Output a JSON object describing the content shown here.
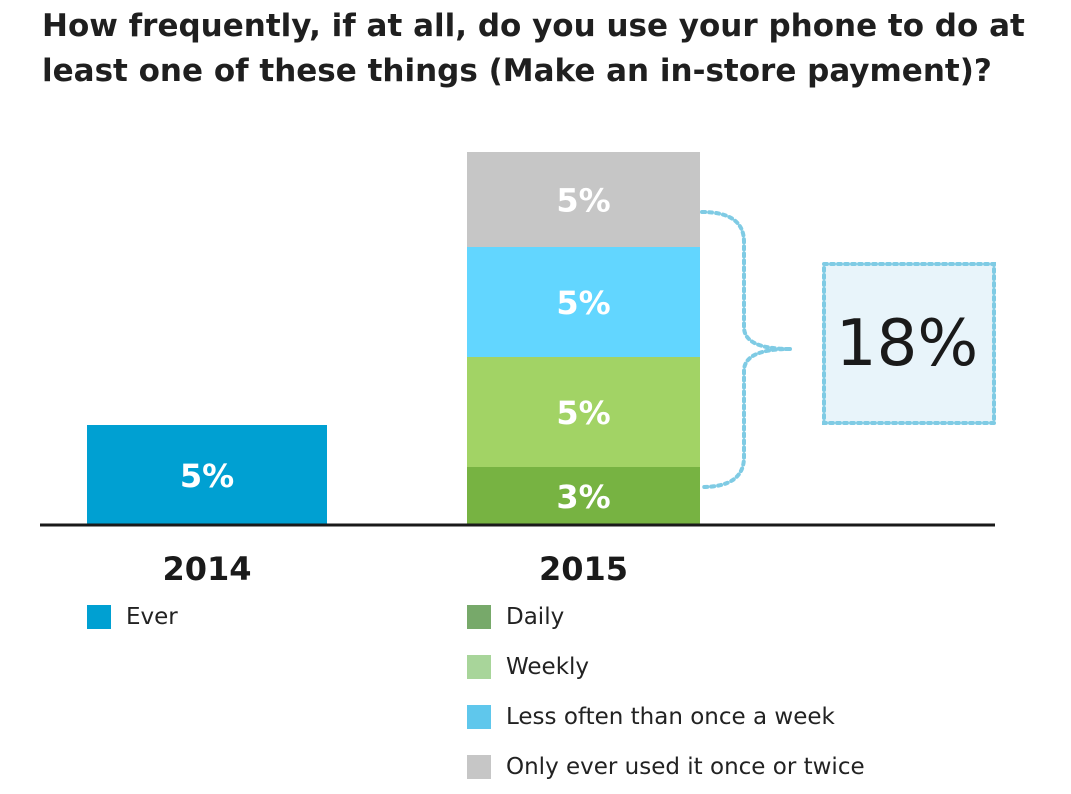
{
  "title_lines": [
    "How frequently, if at all, do you use your phone to do at",
    "least one of these things (Make an in-store payment)?"
  ],
  "chart_data": {
    "type": "bar",
    "stacked": true,
    "categories": [
      "2014",
      "2015"
    ],
    "series": [
      {
        "name": "Ever",
        "color": "#00a0d2",
        "values": [
          5,
          null
        ],
        "labels": [
          "5%",
          null
        ]
      },
      {
        "name": "Daily",
        "color": "#77b342",
        "values": [
          null,
          3
        ],
        "labels": [
          null,
          "3%"
        ]
      },
      {
        "name": "Weekly",
        "color": "#a2d365",
        "values": [
          null,
          5
        ],
        "labels": [
          null,
          "5%"
        ]
      },
      {
        "name": "Less often than once a week",
        "color": "#62d6ff",
        "values": [
          null,
          5
        ],
        "labels": [
          null,
          "5%"
        ]
      },
      {
        "name": "Only ever used it once or twice",
        "color": "#c6c6c6",
        "values": [
          null,
          5
        ],
        "labels": [
          null,
          "5%"
        ]
      }
    ],
    "callout": {
      "value": "18%",
      "bracket_color": "#7fcbe4",
      "box_fill": "#e8f4fa"
    },
    "legend": {
      "2014": [
        {
          "label": "Ever",
          "color": "#00a0d2"
        }
      ],
      "2015": [
        {
          "label": "Daily",
          "color": "#77a96a"
        },
        {
          "label": "Weekly",
          "color": "#a8d59a"
        },
        {
          "label": "Less often than once a week",
          "color": "#5fc7ec"
        },
        {
          "label": "Only ever used it once or twice",
          "color": "#c6c6c6"
        }
      ]
    },
    "grid": false,
    "xlabel": "",
    "ylabel": ""
  }
}
